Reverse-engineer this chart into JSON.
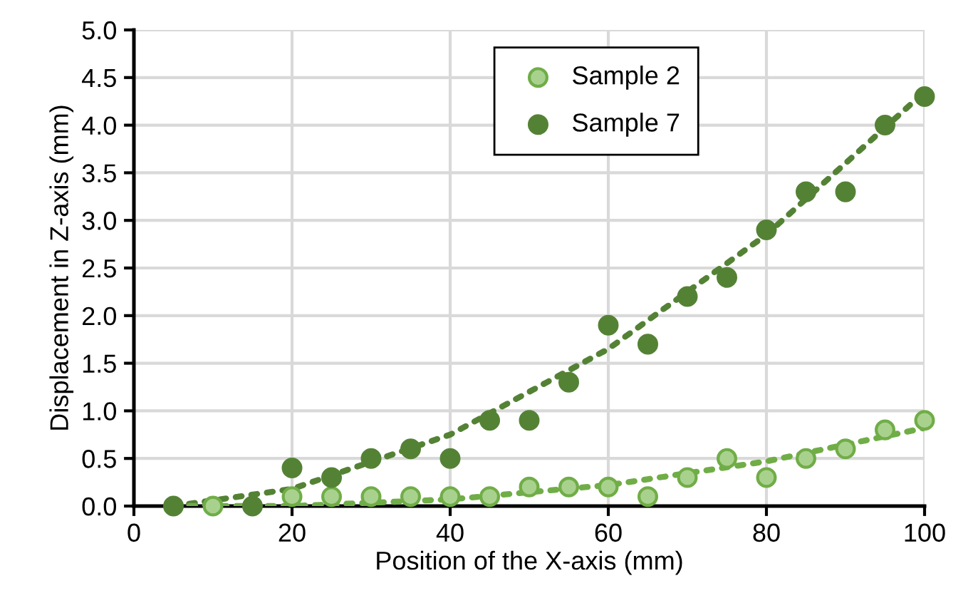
{
  "chart_data": {
    "type": "scatter",
    "xlabel": "Position of the X-axis (mm)",
    "ylabel": "Displacement in Z-axis (mm)",
    "xlim": [
      0,
      100
    ],
    "xticks": [
      0,
      20,
      40,
      60,
      80,
      100
    ],
    "ylim": [
      0,
      5.0
    ],
    "yticks": [
      {
        "value": 0,
        "label": "0.0"
      },
      {
        "value": 0.5,
        "label": "0.5"
      },
      {
        "value": 1,
        "label": "1.0"
      },
      {
        "value": 1.5,
        "label": "1.5"
      },
      {
        "value": 2,
        "label": "2.0"
      },
      {
        "value": 2.5,
        "label": "2.5"
      },
      {
        "value": 3,
        "label": "3.0"
      },
      {
        "value": 3.5,
        "label": "3.5"
      },
      {
        "value": 4,
        "label": "4.0"
      },
      {
        "value": 4.5,
        "label": "4.5"
      },
      {
        "value": 5,
        "label": "5.0"
      }
    ],
    "grid": true,
    "legend": "top right",
    "marker": "circle",
    "series": [
      {
        "type": "line",
        "line_style": "dotted",
        "marker": "none",
        "color": "#548235",
        "x": [
          5,
          20,
          40,
          60,
          80,
          100
        ],
        "values": [
          0,
          0.18,
          0.75,
          1.65,
          2.85,
          4.35
        ]
      },
      {
        "type": "line",
        "line_style": "dotted",
        "marker": "none",
        "color": "#70ad47",
        "x": [
          5,
          20,
          40,
          60,
          80,
          100
        ],
        "values": [
          0,
          0.0,
          0.07,
          0.22,
          0.47,
          0.82
        ]
      },
      {
        "name": "Sample 2",
        "color": "#a9d18e",
        "x": [
          10,
          20,
          25,
          30,
          35,
          40,
          45,
          50,
          55,
          60,
          65,
          70,
          75,
          80,
          85,
          90,
          95,
          100
        ],
        "values": [
          0,
          0.1,
          0.1,
          0.1,
          0.1,
          0.1,
          0.1,
          0.2,
          0.2,
          0.2,
          0.1,
          0.3,
          0.5,
          0.3,
          0.5,
          0.6,
          0.8,
          0.9
        ]
      },
      {
        "name": "Sample 7",
        "color": "#548235",
        "x": [
          5,
          15,
          20,
          25,
          30,
          35,
          40,
          45,
          50,
          55,
          60,
          65,
          70,
          75,
          80,
          85,
          90,
          95,
          100
        ],
        "values": [
          0,
          0,
          0.4,
          0.3,
          0.5,
          0.6,
          0.5,
          0.9,
          0.9,
          1.3,
          1.9,
          1.7,
          2.2,
          2.4,
          2.9,
          3.3,
          3.3,
          4.0,
          4.3
        ]
      }
    ]
  }
}
